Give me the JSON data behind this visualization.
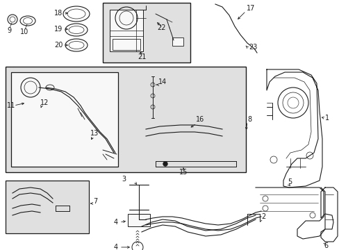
{
  "bg_color": "#ffffff",
  "lc": "#1a1a1a",
  "fill_light": "#e0e0e0",
  "fill_white": "#f8f8f8",
  "fig_w": 4.89,
  "fig_h": 3.6,
  "dpi": 100
}
